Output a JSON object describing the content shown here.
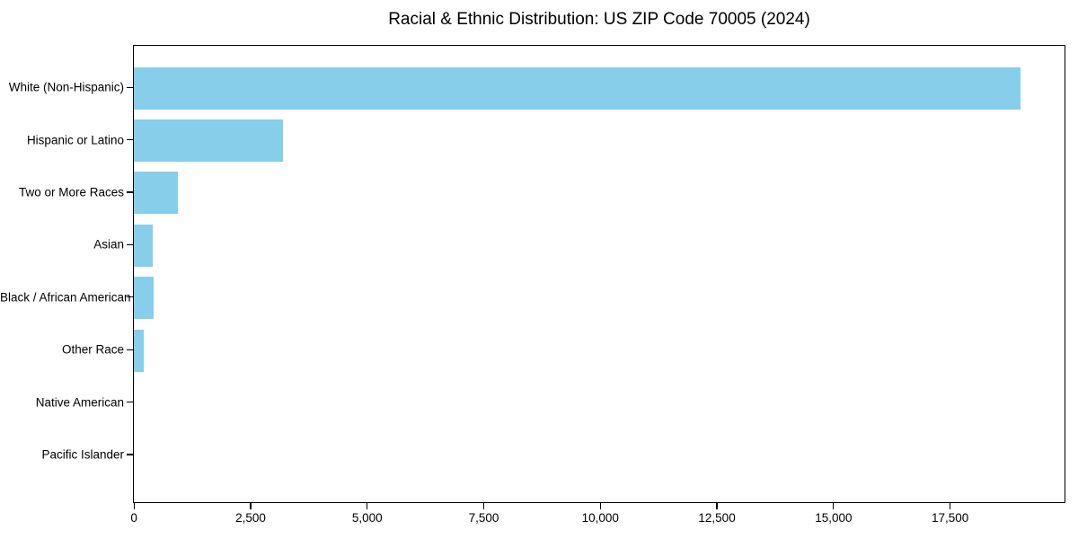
{
  "chart_data": {
    "type": "bar",
    "orientation": "horizontal",
    "title": "Racial & Ethnic Distribution: US ZIP Code 70005 (2024)",
    "categories": [
      "White (Non-Hispanic)",
      "Hispanic or Latino",
      "Two or More Races",
      "Asian",
      "Black / African American",
      "Other Race",
      "Native American",
      "Pacific Islander"
    ],
    "values": [
      19000,
      3200,
      950,
      400,
      425,
      210,
      0,
      0
    ],
    "xlabel": "",
    "ylabel": "",
    "xlim": [
      0,
      19950
    ],
    "x_ticks": [
      0,
      2500,
      5000,
      7500,
      10000,
      12500,
      15000,
      17500
    ],
    "x_tick_labels": [
      "0",
      "2,500",
      "5,000",
      "7,500",
      "10,000",
      "12,500",
      "15,000",
      "17,500"
    ],
    "bar_color": "#87CEEB",
    "spine_color": "#000000",
    "text_color": "#000000",
    "background_color": "#ffffff",
    "grid": false,
    "legend": "none"
  }
}
